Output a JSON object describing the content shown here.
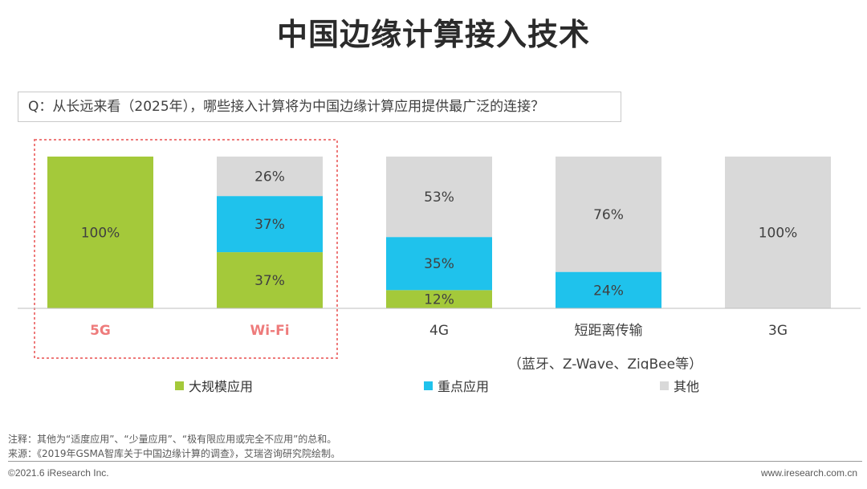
{
  "title": "中国边缘计算接入技术",
  "question": "Q：从长远来看（2025年），哪些接入计算将为中国边缘计算应用提供最广泛的连接？",
  "colors": {
    "large_scale": "#A4C93A",
    "key": "#1FC2EC",
    "other": "#D9D9D9",
    "highlight": "#EE7B7B",
    "axis": "#BFBFBF"
  },
  "chart_data": {
    "type": "bar",
    "stacked": true,
    "percent_stacked": true,
    "categories": [
      {
        "label": "5G",
        "sublabel": "",
        "highlighted": true
      },
      {
        "label": "Wi-Fi",
        "sublabel": "",
        "highlighted": true
      },
      {
        "label": "4G",
        "sublabel": "",
        "highlighted": false
      },
      {
        "label": "短距离传输",
        "sublabel": "（蓝牙、Z-Wave、ZigBee等）",
        "highlighted": false
      },
      {
        "label": "3G",
        "sublabel": "",
        "highlighted": false
      }
    ],
    "series": [
      {
        "name": "大规模应用",
        "color": "#A4C93A",
        "values": [
          100,
          37,
          12,
          0,
          0
        ]
      },
      {
        "name": "重点应用",
        "color": "#1FC2EC",
        "values": [
          0,
          37,
          35,
          24,
          0
        ]
      },
      {
        "name": "其他",
        "color": "#D9D9D9",
        "values": [
          0,
          26,
          53,
          76,
          100
        ]
      }
    ],
    "value_suffix": "%",
    "ylim": [
      0,
      100
    ],
    "legend_position": "bottom"
  },
  "notes": {
    "note": "注释：其他为“适度应用”、“少量应用”、“极有限应用或完全不应用”的总和。",
    "source": "来源：《2019年GSMA智库关于中国边缘计算的调查》，艾瑞咨询研究院绘制。"
  },
  "footer": {
    "left": "©2021.6 iResearch Inc.",
    "right": "www.iresearch.com.cn"
  }
}
